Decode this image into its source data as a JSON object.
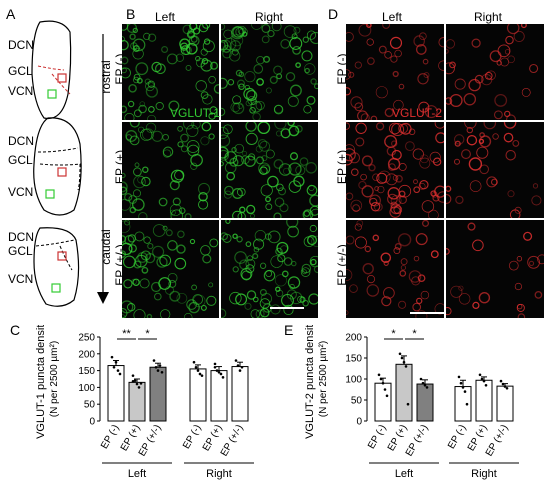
{
  "panel_letters": {
    "a": "A",
    "b": "B",
    "c": "C",
    "d": "D",
    "e": "E"
  },
  "schematic": {
    "regions": [
      "DCN",
      "GCL",
      "VCN"
    ],
    "axis_top": "rostral",
    "axis_bottom": "caudal"
  },
  "panel_b": {
    "col_left": "Left",
    "col_right": "Right",
    "rows": [
      "EP (-)",
      "EP (+)",
      "EP (+/-)"
    ],
    "marker": "VGLUT-1",
    "marker_color": "#33cc33"
  },
  "panel_d": {
    "col_left": "Left",
    "col_right": "Right",
    "rows": [
      "EP (-)",
      "EP (+)",
      "EP (+/-)"
    ],
    "marker": "VGLUT-2",
    "marker_color": "#e03030"
  },
  "chart_data": [
    {
      "type": "bar",
      "panel": "C",
      "ylabel_line1": "VGLUT-1 puncta density",
      "ylabel_line2": "(N per 2500 µm²)",
      "ylim": [
        0,
        250
      ],
      "yticks": [
        0,
        50,
        100,
        150,
        200,
        250
      ],
      "groups": [
        {
          "name": "Left",
          "categories": [
            "EP (-)",
            "EP (+)",
            "EP (+/-)"
          ],
          "values": [
            165,
            115,
            160
          ],
          "errors": [
            15,
            10,
            12
          ],
          "fills": [
            "#ffffff",
            "#c8c8c8",
            "#808080"
          ]
        },
        {
          "name": "Right",
          "categories": [
            "EP (-)",
            "EP (+)",
            "EP (+/-)"
          ],
          "values": [
            155,
            150,
            162
          ],
          "errors": [
            12,
            12,
            13
          ],
          "fills": [
            "#ffffff",
            "#ffffff",
            "#ffffff"
          ]
        }
      ],
      "significance": [
        {
          "from": 0,
          "to": 1,
          "label": "**"
        },
        {
          "from": 1,
          "to": 2,
          "label": "*"
        }
      ],
      "points": [
        [
          [
            190,
            160,
            175,
            150,
            140
          ],
          [
            135,
            120,
            110,
            100,
            112,
            118
          ],
          [
            180,
            160,
            150,
            165,
            145
          ]
        ],
        [
          [
            175,
            160,
            150,
            140,
            135
          ],
          [
            170,
            150,
            145,
            140,
            130,
            160
          ],
          [
            180,
            165,
            150,
            160
          ]
        ]
      ]
    },
    {
      "type": "bar",
      "panel": "E",
      "ylabel_line1": "VGLUT-2 puncta density",
      "ylabel_line2": "(N per 2500 µm²)",
      "ylim": [
        0,
        200
      ],
      "yticks": [
        0,
        50,
        100,
        150,
        200
      ],
      "groups": [
        {
          "name": "Left",
          "categories": [
            "EP (-)",
            "EP (+)",
            "EP (+/-)"
          ],
          "values": [
            90,
            135,
            88
          ],
          "errors": [
            12,
            20,
            10
          ],
          "fills": [
            "#ffffff",
            "#c8c8c8",
            "#808080"
          ]
        },
        {
          "name": "Right",
          "categories": [
            "EP (-)",
            "EP (+)",
            "EP (+/-)"
          ],
          "values": [
            82,
            97,
            83
          ],
          "errors": [
            15,
            8,
            6
          ],
          "fills": [
            "#ffffff",
            "#ffffff",
            "#ffffff"
          ]
        }
      ],
      "significance": [
        {
          "from": 0,
          "to": 1,
          "label": "*"
        },
        {
          "from": 1,
          "to": 2,
          "label": "*"
        }
      ],
      "points": [
        [
          [
            110,
            100,
            90,
            75,
            60
          ],
          [
            160,
            150,
            140,
            130,
            40
          ],
          [
            100,
            90,
            85,
            80
          ]
        ],
        [
          [
            105,
            90,
            80,
            70,
            40
          ],
          [
            110,
            100,
            95,
            85
          ],
          [
            95,
            88,
            82,
            78
          ]
        ]
      ]
    }
  ]
}
